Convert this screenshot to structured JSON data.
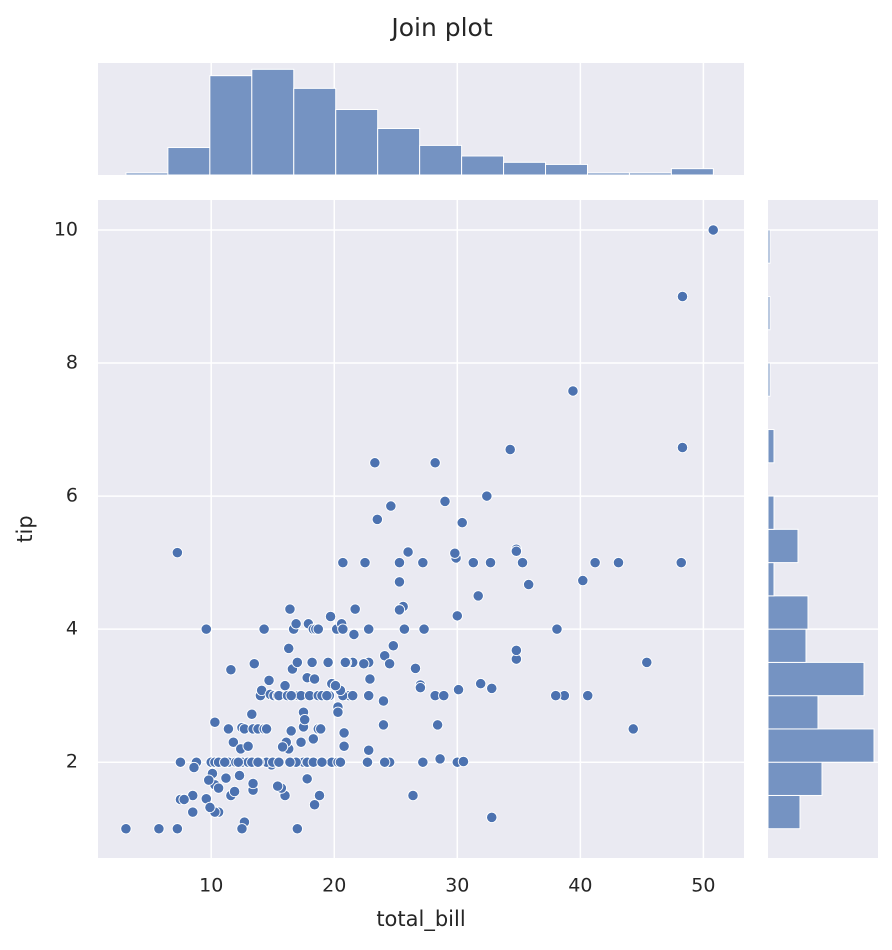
{
  "chart_data": [
    {
      "type": "scatter",
      "title": "Join plot",
      "xlabel": "total_bill",
      "ylabel": "tip",
      "color": "#4c72b0",
      "xlim": [
        0.8,
        53.3
      ],
      "ylim": [
        0.56,
        10.45
      ],
      "xticks": [
        10,
        20,
        30,
        40,
        50
      ],
      "yticks": [
        2,
        4,
        6,
        8,
        10
      ],
      "grid": true,
      "x": [
        3.07,
        5.75,
        7.25,
        7.25,
        9.6,
        50.8,
        48.3,
        39.4,
        48.3,
        34.3,
        23.3,
        28.2,
        29,
        32.4,
        23.5,
        24.6,
        30.4,
        34.8,
        34.8,
        35.3,
        48.2,
        41.2,
        43.1,
        40.2,
        35.8,
        31.7,
        32.7,
        31.3,
        29.9,
        29.8,
        26,
        27.2,
        25.3,
        22.5,
        20.7,
        25.3,
        38.1,
        30,
        45.4,
        44.3,
        38.7,
        40.6,
        38,
        34.8,
        34.8,
        32.8,
        31.9,
        30.1,
        28.2,
        28.9,
        27,
        27,
        26.6,
        28.4,
        28.6,
        27.2,
        30,
        30.5,
        26.4,
        32.8,
        24.5,
        24.1,
        22.8,
        22.7,
        24,
        24,
        24.1,
        24.5,
        24.8,
        25.7,
        25.6,
        25.3,
        27.3,
        22.8,
        21.7,
        21.6,
        21.5,
        22.8,
        22.4,
        22.9,
        22.8,
        21,
        21.2,
        20.7,
        20.5,
        20.3,
        20.3,
        20.8,
        20.8,
        19.8,
        20.3,
        18.8,
        18.4,
        17.8,
        17.9,
        17.5,
        16.9,
        16.4,
        16,
        15.7,
        14.9,
        14.5,
        15,
        15.5,
        16.3,
        16.1,
        16.5,
        13.9,
        13.4,
        13.4,
        12.7,
        12.5,
        12.3,
        11.6,
        11.2,
        11.9,
        10.6,
        10.3,
        10.1,
        10.3,
        10.6,
        9.6,
        9.8,
        9.9,
        8.5,
        8.5,
        7.5,
        7.8,
        8.8,
        8.6,
        7.5,
        10,
        10.3,
        10.6,
        11.4,
        12,
        12.5,
        13,
        13.3,
        10.3,
        11.4,
        11.6,
        11.8,
        12.4,
        12.5,
        12.7,
        13,
        13.3,
        13.4,
        13.8,
        13.5,
        14,
        14.1,
        14.3,
        14.7,
        14.8,
        15.1,
        15.4,
        15.5,
        16,
        16.2,
        16.3,
        16.4,
        16.6,
        16.7,
        16.9,
        17,
        17.1,
        17.3,
        17.5,
        17.5,
        17.6,
        17.8,
        17.9,
        18,
        18.2,
        18.3,
        18.5,
        18.7,
        18.7,
        18.4,
        18.7,
        19,
        19.5,
        19.6,
        19.8,
        20.1,
        20.2,
        20.6,
        20.7,
        20.9,
        21.5,
        19.4,
        19.7,
        20.5,
        18.9,
        17.8,
        18.3,
        19,
        16.5,
        17.3,
        18.3,
        17,
        15.8,
        14.3,
        13.8,
        12.2,
        11.1,
        14.5,
        15.4
      ],
      "values": [
        1,
        1,
        1,
        5.15,
        4,
        10,
        9,
        7.58,
        6.73,
        6.7,
        6.5,
        6.5,
        5.92,
        6,
        5.65,
        5.85,
        5.6,
        5.2,
        5.17,
        5,
        5,
        5,
        5,
        4.73,
        4.67,
        4.5,
        5,
        5,
        5.07,
        5.14,
        5.16,
        5,
        5,
        5,
        5,
        4.71,
        4,
        4.2,
        3.5,
        2.5,
        3,
        3,
        3,
        3.55,
        3.68,
        3.11,
        3.18,
        3.09,
        3,
        3,
        3.16,
        3.12,
        3.41,
        2.56,
        2.05,
        2,
        2,
        2.01,
        1.5,
        1.17,
        2,
        2,
        2.18,
        2,
        2.56,
        2.92,
        3.6,
        3.48,
        3.75,
        4,
        4.34,
        4.29,
        4,
        4,
        4.3,
        3.92,
        3.5,
        3.5,
        3.48,
        3.25,
        3,
        3.5,
        3,
        3,
        3.08,
        2.83,
        2.75,
        2.44,
        2.24,
        2,
        2,
        1.5,
        1.36,
        1.75,
        2,
        2,
        2,
        2,
        1.5,
        1.61,
        1.96,
        2,
        2,
        2,
        2.2,
        2.3,
        2.47,
        2,
        1.58,
        1.68,
        1.1,
        1,
        1.8,
        1.5,
        1.76,
        1.56,
        1.25,
        1.25,
        1.83,
        1.66,
        1.61,
        1.45,
        1.73,
        1.32,
        1.25,
        1.5,
        1.44,
        1.44,
        2,
        1.92,
        2,
        2,
        2,
        2,
        2,
        2,
        2,
        2,
        2,
        2.6,
        2.5,
        3.39,
        2.3,
        2.2,
        2.52,
        2.5,
        2.24,
        2.72,
        2.5,
        2.5,
        3.48,
        3,
        3.08,
        4,
        3.23,
        3.02,
        3,
        3,
        3,
        3.15,
        3,
        3.71,
        4.3,
        3.4,
        4,
        4.08,
        3.5,
        3,
        3,
        2.75,
        2.53,
        2.64,
        3.27,
        4.08,
        3,
        3.5,
        4,
        4,
        2.5,
        4,
        3.25,
        3,
        3,
        3.5,
        3,
        3.18,
        3.15,
        4,
        4.08,
        4,
        3.5,
        3,
        3,
        4.19,
        2,
        2.5,
        2,
        2,
        2,
        3,
        2.3,
        2.35,
        1,
        2.23,
        2.5,
        2,
        2,
        2,
        2.5,
        1.64
      ]
    },
    {
      "type": "histogram",
      "orientation": "vertical",
      "color": "#7593c2",
      "bins": [
        3.07,
        6.48,
        9.89,
        13.3,
        16.71,
        20.12,
        23.53,
        26.94,
        30.35,
        33.76,
        37.17,
        40.58,
        43.99,
        47.4,
        50.81
      ],
      "values": [
        1,
        13,
        47,
        50,
        41,
        31,
        22,
        14,
        9,
        6,
        5,
        1,
        1,
        3
      ],
      "ylim": [
        0,
        53
      ]
    },
    {
      "type": "histogram",
      "orientation": "horizontal",
      "color": "#7593c2",
      "bins": [
        1,
        1.5,
        2,
        2.5,
        3,
        3.5,
        4,
        4.5,
        5,
        5.5,
        6,
        6.5,
        7,
        7.5,
        8,
        8.5,
        9,
        9.5,
        10
      ],
      "values": [
        16,
        27,
        53,
        25,
        48,
        19,
        20,
        3,
        15,
        3,
        0,
        3,
        0,
        1,
        0,
        1,
        0,
        1
      ],
      "xlim": [
        0,
        55
      ]
    }
  ]
}
